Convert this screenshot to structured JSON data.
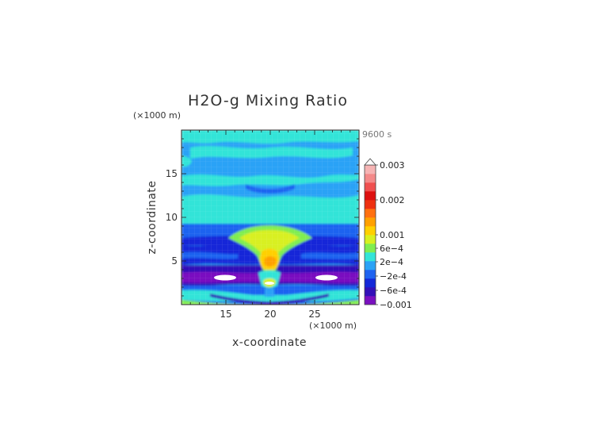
{
  "chart_data": {
    "type": "heatmap",
    "title": "H2O-g Mixing Ratio",
    "xlabel": "x-coordinate",
    "ylabel": "z-coordinate",
    "x_unit": "(×1000 m)",
    "y_unit": "(×1000 m)",
    "time_label": "9600 s",
    "xlim": [
      10,
      30
    ],
    "ylim": [
      0,
      20
    ],
    "x_ticks": [
      15,
      20,
      25
    ],
    "y_ticks": [
      5,
      10,
      15
    ],
    "colorbar": {
      "labels": [
        {
          "value": 0.003,
          "text": "0.003"
        },
        {
          "value": 0.002,
          "text": "0.002"
        },
        {
          "value": 0.001,
          "text": "0.001"
        },
        {
          "value": 0.0006,
          "text": "6e-4"
        },
        {
          "value": 0.0002,
          "text": "2e-4"
        },
        {
          "value": -0.0002,
          "text": "-2e-4"
        },
        {
          "value": -0.0006,
          "text": "-6e-4"
        },
        {
          "value": -0.001,
          "text": "-0.001"
        }
      ],
      "colors": [
        "#7a10c0",
        "#3310b8",
        "#1428d8",
        "#1f63f0",
        "#2aa2f6",
        "#33e4d8",
        "#80ee50",
        "#d8f020",
        "#ffd000",
        "#ffa000",
        "#ff7010",
        "#ee3010",
        "#dd1010",
        "#f05050",
        "#f48a8a",
        "#f6b4b4"
      ]
    }
  }
}
